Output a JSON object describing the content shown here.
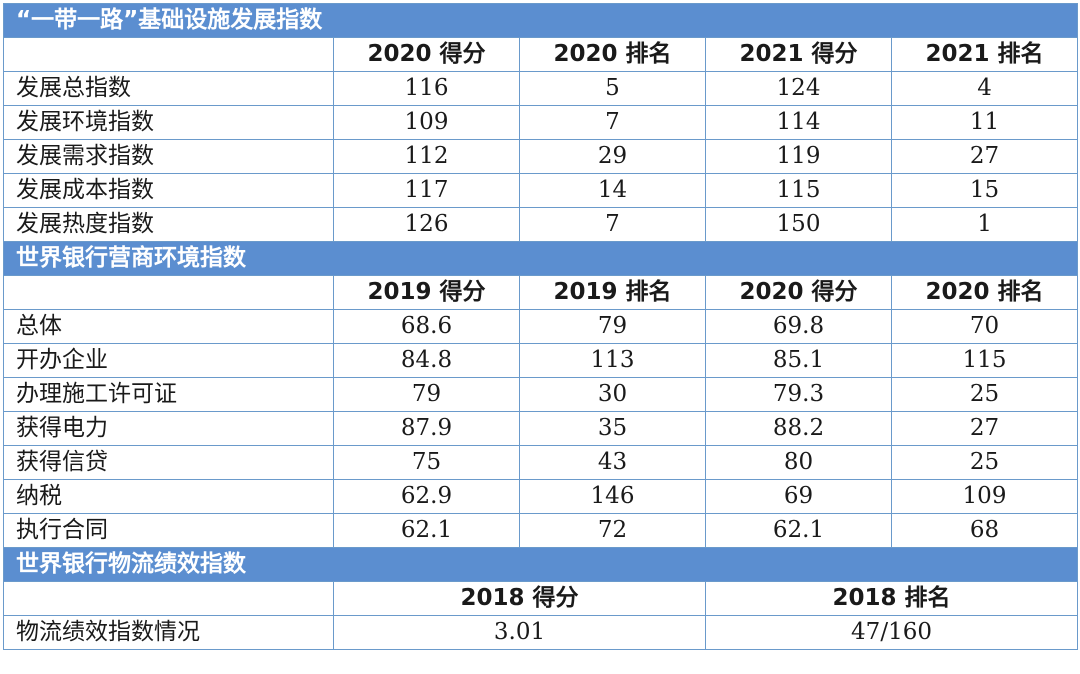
{
  "sections": [
    {
      "title": "“一带一路”基础设施发展指数",
      "headers": [
        "2020 得分",
        "2020 排名",
        "2021 得分",
        "2021 排名"
      ],
      "rows": [
        {
          "label": "发展总指数",
          "values": [
            "116",
            "5",
            "124",
            "4"
          ]
        },
        {
          "label": "发展环境指数",
          "values": [
            "109",
            "7",
            "114",
            "11"
          ]
        },
        {
          "label": "发展需求指数",
          "values": [
            "112",
            "29",
            "119",
            "27"
          ]
        },
        {
          "label": "发展成本指数",
          "values": [
            "117",
            "14",
            "115",
            "15"
          ]
        },
        {
          "label": "发展热度指数",
          "values": [
            "126",
            "7",
            "150",
            "1"
          ]
        }
      ]
    },
    {
      "title": "世界银行营商环境指数",
      "headers": [
        "2019 得分",
        "2019 排名",
        "2020 得分",
        "2020 排名"
      ],
      "rows": [
        {
          "label": "总体",
          "values": [
            "68.6",
            "79",
            "69.8",
            "70"
          ]
        },
        {
          "label": "开办企业",
          "values": [
            "84.8",
            "113",
            "85.1",
            "115"
          ]
        },
        {
          "label": "办理施工许可证",
          "values": [
            "79",
            "30",
            "79.3",
            "25"
          ]
        },
        {
          "label": "获得电力",
          "values": [
            "87.9",
            "35",
            "88.2",
            "27"
          ]
        },
        {
          "label": "获得信贷",
          "values": [
            "75",
            "43",
            "80",
            "25"
          ]
        },
        {
          "label": "纳税",
          "values": [
            "62.9",
            "146",
            "69",
            "109"
          ]
        },
        {
          "label": "执行合同",
          "values": [
            "62.1",
            "72",
            "62.1",
            "68"
          ]
        }
      ]
    },
    {
      "title": "世界银行物流绩效指数",
      "headers": [
        "2018 得分",
        "2018 排名"
      ],
      "rows": [
        {
          "label": "物流绩效指数情况",
          "values": [
            "3.01",
            "47/160"
          ]
        }
      ]
    }
  ],
  "colors": {
    "section_bg": "#5b8ed0",
    "section_text": "#ffffff",
    "border": "#6a9acb",
    "text": "#1a1a1a"
  }
}
